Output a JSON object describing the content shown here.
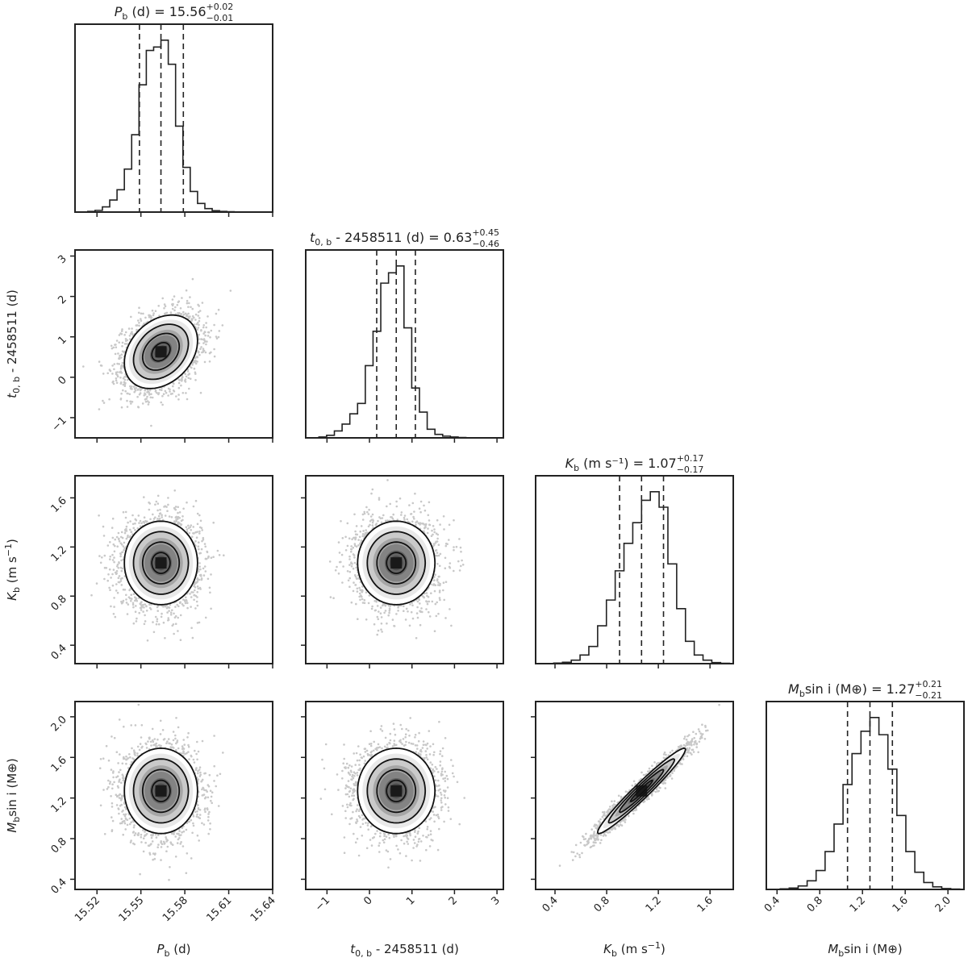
{
  "chart_data": {
    "type": "corner",
    "n_params": 4,
    "parameters": [
      {
        "id": "P_b",
        "label_main": "P",
        "label_sub": "b",
        "label_rest": " (d)",
        "median": 15.5637,
        "sigma": 0.0125,
        "range": [
          15.505,
          15.64
        ],
        "ticks": [
          15.52,
          15.55,
          15.58,
          15.61,
          15.64
        ],
        "tick_labels": [
          "15.52",
          "15.55",
          "15.58",
          "15.61",
          "15.64"
        ],
        "quantiles": [
          15.549,
          15.5637,
          15.579
        ],
        "title": {
          "main": "P",
          "sub": "b",
          "mid": " (d) = 15.56",
          "plus": "+0.02",
          "minus": "−0.01"
        },
        "hist_heights": [
          0.004,
          0.01,
          0.03,
          0.07,
          0.13,
          0.25,
          0.45,
          0.74,
          0.94,
          0.96,
          1.0,
          0.86,
          0.5,
          0.26,
          0.12,
          0.05,
          0.02,
          0.008,
          0.004,
          0.002
        ]
      },
      {
        "id": "t0_b",
        "label_main": "t",
        "label_sub": "0, b",
        "label_rest": " - 2458511 (d)",
        "median": 0.63,
        "sigma": 0.455,
        "range": [
          -1.5,
          3.15
        ],
        "ticks": [
          -1,
          0,
          1,
          2,
          3
        ],
        "tick_labels": [
          "−1",
          "0",
          "1",
          "2",
          "3"
        ],
        "quantiles": [
          0.17,
          0.63,
          1.08
        ],
        "title": {
          "main": "t",
          "sub": "0, b",
          "mid": " - 2458511 (d) = 0.63",
          "plus": "+0.45",
          "minus": "−0.46"
        },
        "hist_heights": [
          0.005,
          0.015,
          0.04,
          0.08,
          0.14,
          0.2,
          0.42,
          0.62,
          0.9,
          0.96,
          1.0,
          0.64,
          0.29,
          0.15,
          0.05,
          0.02,
          0.01,
          0.005,
          0.002,
          0.001
        ]
      },
      {
        "id": "K_b",
        "label_main": "K",
        "label_sub": "b",
        "label_rest": " (m s",
        "label_sup": "−1",
        "label_end": ")",
        "median": 1.07,
        "sigma": 0.17,
        "range": [
          0.25,
          1.78
        ],
        "ticks": [
          0.4,
          0.8,
          1.2,
          1.6
        ],
        "tick_labels": [
          "0.4",
          "0.8",
          "1.2",
          "1.6"
        ],
        "quantiles": [
          0.9,
          1.07,
          1.24
        ],
        "title": {
          "main": "K",
          "sub": "b",
          "mid": " (m s⁻¹) = 1.07",
          "plus": "+0.17",
          "minus": "−0.17"
        },
        "hist_heights": [
          0.003,
          0.008,
          0.02,
          0.05,
          0.1,
          0.22,
          0.37,
          0.54,
          0.7,
          0.82,
          0.95,
          1.0,
          0.91,
          0.58,
          0.32,
          0.13,
          0.05,
          0.02,
          0.006,
          0.002
        ]
      },
      {
        "id": "Msini_b",
        "label_main": "M",
        "label_sub": "b",
        "label_rest": "sin i (M⊕)",
        "median": 1.27,
        "sigma": 0.21,
        "range": [
          0.3,
          2.15
        ],
        "ticks": [
          0.4,
          0.8,
          1.2,
          1.6,
          2.0
        ],
        "tick_labels": [
          "0.4",
          "0.8",
          "1.2",
          "1.6",
          "2.0"
        ],
        "quantiles": [
          1.06,
          1.27,
          1.48
        ],
        "title": {
          "main": "M",
          "sub": "b",
          "mid": "sin i (M⊕) = 1.27",
          "plus": "+0.21",
          "minus": "−0.21"
        },
        "hist_heights": [
          0.003,
          0.008,
          0.02,
          0.05,
          0.11,
          0.22,
          0.38,
          0.61,
          0.79,
          0.92,
          1.0,
          0.9,
          0.7,
          0.43,
          0.22,
          0.1,
          0.04,
          0.015,
          0.005,
          0.002
        ]
      }
    ],
    "correlations": {
      "1_0": 0.3,
      "2_0": 0.0,
      "2_1": 0.0,
      "3_0": 0.0,
      "3_1": 0.0,
      "3_2": 0.97
    },
    "contour_levels_sigma": [
      0.5,
      1,
      1.5,
      2
    ],
    "colors": {
      "ink": "#222222",
      "points": "#9a9a9a",
      "shade": "#2a2a2a"
    }
  }
}
